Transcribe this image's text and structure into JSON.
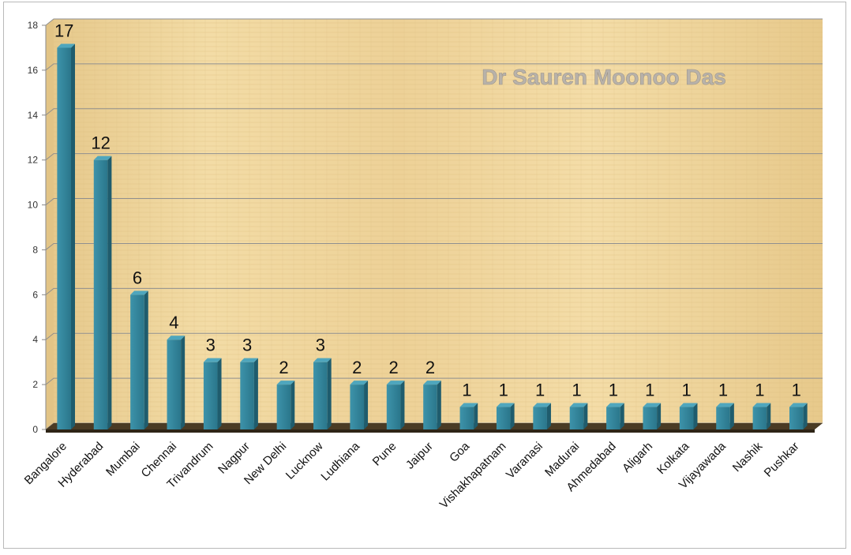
{
  "chart_data": {
    "type": "bar",
    "title": "",
    "watermark": "Dr Sauren Moonoo Das",
    "xlabel": "",
    "ylabel": "",
    "ylim": [
      0,
      18
    ],
    "yticks": [
      "0",
      "2",
      "4",
      "6",
      "8",
      "10",
      "12",
      "14",
      "16",
      "18"
    ],
    "grid": true,
    "legend": "none",
    "bar_color": "#2f7f96",
    "background": "papyrus",
    "categories": [
      "Bangalore",
      "Hyderabad",
      "Mumbai",
      "Chennai",
      "Trivandrum",
      "Nagpur",
      "New Delhi",
      "Lucknow",
      "Ludhiana",
      "Pune",
      "Jaipur",
      "Goa",
      "Vishakhapatnam",
      "Varanasi",
      "Madurai",
      "Ahmedabad",
      "Aligarh",
      "Kolkata",
      "Vijayawada",
      "Nashik",
      "Pushkar"
    ],
    "values": [
      17,
      12,
      6,
      4,
      3,
      3,
      2,
      3,
      2,
      2,
      2,
      1,
      1,
      1,
      1,
      1,
      1,
      1,
      1,
      1,
      1
    ],
    "data_labels": [
      "17",
      "12",
      "6",
      "4",
      "3",
      "3",
      "2",
      "3",
      "2",
      "2",
      "2",
      "1",
      "1",
      "1",
      "1",
      "1",
      "1",
      "1",
      "1",
      "1",
      "1"
    ]
  }
}
